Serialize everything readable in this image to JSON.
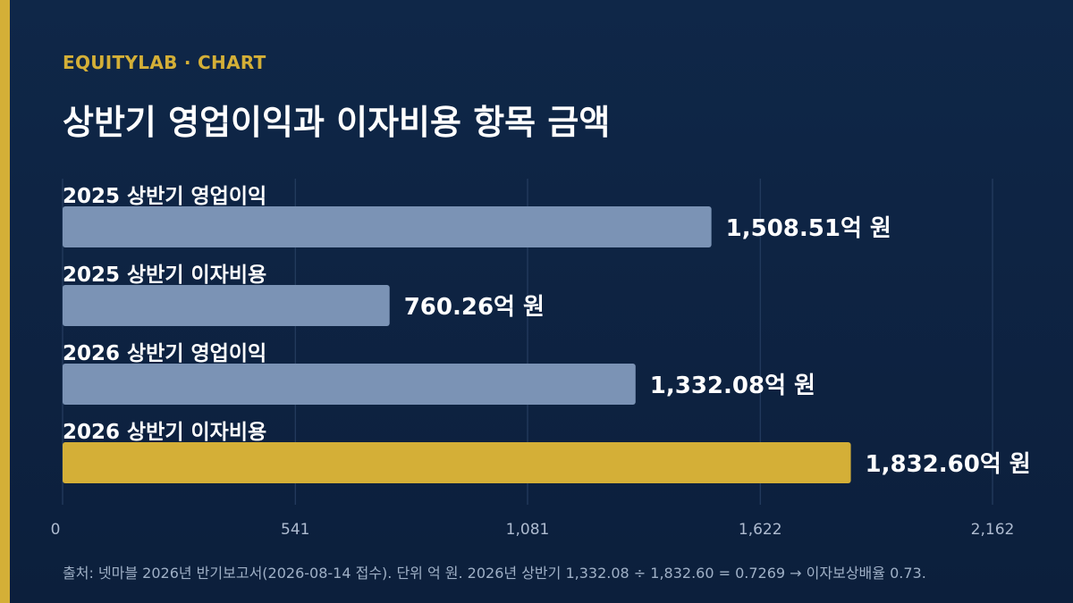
{
  "header": {
    "kicker": "EQUITYLAB · CHART",
    "title": "상반기 영업이익과 이자비용 항목 금액"
  },
  "chart_data": {
    "type": "bar",
    "orientation": "horizontal",
    "categories": [
      "2025 상반기 영업이익",
      "2025 상반기 이자비용",
      "2026 상반기 영업이익",
      "2026 상반기 이자비용"
    ],
    "values": [
      1508.51,
      760.26,
      1332.08,
      1832.6
    ],
    "value_labels": [
      "1,508.51억 원",
      "760.26억 원",
      "1,332.08억 원",
      "1,832.60억 원"
    ],
    "highlight_index": 3,
    "xlim": [
      0,
      2162
    ],
    "xticks": [
      0,
      541,
      1081,
      1622,
      2162
    ],
    "xtick_labels": [
      "0",
      "541",
      "1,081",
      "1,622",
      "2,162"
    ],
    "grid": true,
    "colors": {
      "bar": "#7b93b5",
      "highlight": "#d4af37",
      "grid": "#2a4266",
      "tick_label": "#aebbd0"
    }
  },
  "footer": {
    "note": "출처: 넷마블 2026년 반기보고서(2026-08-14 접수). 단위 억 원. 2026년 상반기 1,332.08 ÷ 1,832.60 = 0.7269 → 이자보상배율 0.73."
  }
}
